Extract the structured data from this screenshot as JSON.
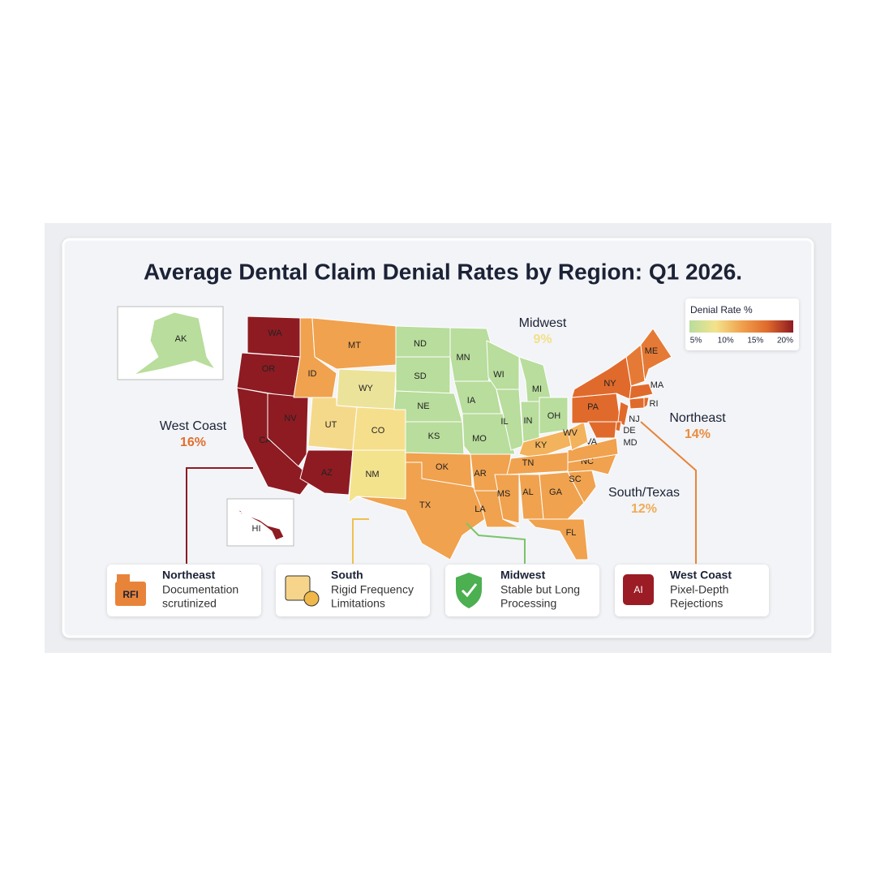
{
  "title": "Average Dental Claim Denial Rates by Region: Q1 2026.",
  "legend": {
    "title": "Denial Rate %",
    "colors": [
      "#b8dd9c",
      "#f3e38c",
      "#f0a24e",
      "#e06a2c",
      "#8e1b22"
    ],
    "ticks": [
      {
        "value": 5,
        "label": "5%"
      },
      {
        "value": 10,
        "label": "10%"
      },
      {
        "value": 15,
        "label": "15%"
      },
      {
        "value": 20,
        "label": "20%"
      }
    ]
  },
  "regions": [
    {
      "name": "West Coast",
      "value": 16,
      "value_label": "16%"
    },
    {
      "name": "Midwest",
      "value": 9,
      "value_label": "9%"
    },
    {
      "name": "Northeast",
      "value": 14,
      "value_label": "14%"
    },
    {
      "name": "South/Texas",
      "value": 12,
      "value_label": "12%"
    }
  ],
  "states": [
    {
      "label": "AK",
      "color": "#b8dd9c"
    },
    {
      "label": "WA",
      "color": "#8e1b22"
    },
    {
      "label": "OR",
      "color": "#8e1b22"
    },
    {
      "label": "CA",
      "color": "#8e1b22"
    },
    {
      "label": "NV",
      "color": "#8e1b22"
    },
    {
      "label": "ID",
      "color": "#f0a24e"
    },
    {
      "label": "MT",
      "color": "#f0a24e"
    },
    {
      "label": "WY",
      "color": "#ece39a"
    },
    {
      "label": "UT",
      "color": "#f5d98a"
    },
    {
      "label": "AZ",
      "color": "#8e1b22"
    },
    {
      "label": "CO",
      "color": "#f6df8c"
    },
    {
      "label": "NM",
      "color": "#f3e38c"
    },
    {
      "label": "ND",
      "color": "#b8dd9c"
    },
    {
      "label": "SD",
      "color": "#b8dd9c"
    },
    {
      "label": "NE",
      "color": "#b8dd9c"
    },
    {
      "label": "KS",
      "color": "#b8dd9c"
    },
    {
      "label": "OK",
      "color": "#f0a24e"
    },
    {
      "label": "TX",
      "color": "#f0a24e"
    },
    {
      "label": "MN",
      "color": "#b8dd9c"
    },
    {
      "label": "IA",
      "color": "#b8dd9c"
    },
    {
      "label": "MO",
      "color": "#b8dd9c"
    },
    {
      "label": "AR",
      "color": "#f0a24e"
    },
    {
      "label": "LA",
      "color": "#f0a24e"
    },
    {
      "label": "WI",
      "color": "#b8dd9c"
    },
    {
      "label": "IL",
      "color": "#b8dd9c"
    },
    {
      "label": "MI",
      "color": "#b8dd9c"
    },
    {
      "label": "IN",
      "color": "#b8dd9c"
    },
    {
      "label": "OH",
      "color": "#b8dd9c"
    },
    {
      "label": "KY",
      "color": "#f3b25c"
    },
    {
      "label": "TN",
      "color": "#f0a24e"
    },
    {
      "label": "MS",
      "color": "#f0a24e"
    },
    {
      "label": "AL",
      "color": "#f0a24e"
    },
    {
      "label": "GA",
      "color": "#f0a24e"
    },
    {
      "label": "FL",
      "color": "#f0a24e"
    },
    {
      "label": "SC",
      "color": "#f0a24e"
    },
    {
      "label": "NC",
      "color": "#f0a24e"
    },
    {
      "label": "VA",
      "color": "#f0a24e"
    },
    {
      "label": "WV",
      "color": "#f3b25c"
    },
    {
      "label": "PA",
      "color": "#e06a2c"
    },
    {
      "label": "NY",
      "color": "#e06a2c"
    },
    {
      "label": "NJ",
      "color": "#e06a2c"
    },
    {
      "label": "DE",
      "color": "#e06a2c"
    },
    {
      "label": "MD",
      "color": "#e06a2c"
    },
    {
      "label": "MA",
      "color": "#e06a2c"
    },
    {
      "label": "RI",
      "color": "#e06a2c"
    },
    {
      "label": "ME",
      "color": "#e57a36"
    },
    {
      "label": "HI",
      "color": "#8e1b22"
    }
  ],
  "cards": [
    {
      "title": "Northeast",
      "lines": [
        "Documentation",
        "scrutinized"
      ],
      "icon_text": "RFI"
    },
    {
      "title": "South",
      "lines": [
        "Rigid Frequency",
        "Limitations"
      ]
    },
    {
      "title": "Midwest",
      "lines": [
        "Stable but Long",
        "Processing"
      ]
    },
    {
      "title": "West Coast",
      "lines": [
        "Pixel-Depth",
        "Rejections"
      ],
      "icon_text": "AI"
    }
  ]
}
